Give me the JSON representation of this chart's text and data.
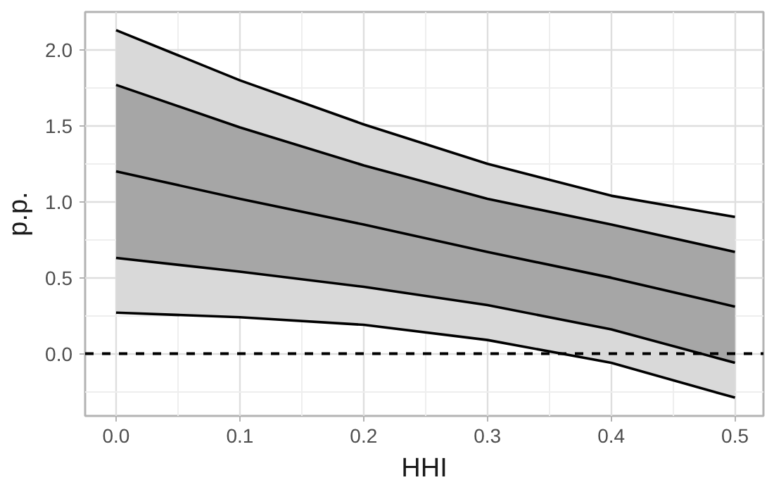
{
  "chart_data": {
    "type": "line",
    "xlabel": "HHI",
    "ylabel": "p.p.",
    "x": [
      0,
      0.1,
      0.2,
      0.3,
      0.4,
      0.5
    ],
    "series": [
      {
        "color": "#000000",
        "values": [
          2.13,
          1.8,
          1.51,
          1.25,
          1.04,
          0.9
        ],
        "lower": [
          0.27,
          0.24,
          0.19,
          0.09,
          -0.06,
          -0.29
        ],
        "upper": [
          2.13,
          1.8,
          1.51,
          1.25,
          1.04,
          0.9
        ]
      },
      {
        "color": "#000000",
        "values": [
          1.2,
          1.02,
          0.85,
          0.67,
          0.5,
          0.31
        ],
        "lower": [
          0.63,
          0.54,
          0.44,
          0.32,
          0.16,
          -0.06
        ],
        "upper": [
          1.77,
          1.49,
          1.24,
          1.02,
          0.85,
          0.67
        ]
      },
      {
        "color": "#000000",
        "values": [
          1.77,
          1.49,
          1.24,
          1.02,
          0.85,
          0.67
        ]
      },
      {
        "color": "#000000",
        "values": [
          0.63,
          0.54,
          0.44,
          0.32,
          0.16,
          -0.06
        ]
      },
      {
        "color": "#000000",
        "values": [
          0.27,
          0.24,
          0.19,
          0.09,
          -0.06,
          -0.29
        ]
      }
    ],
    "xlim": [
      -0.025,
      0.523
    ],
    "ylim": [
      -0.41,
      2.25
    ],
    "xticks": [
      {
        "value": 0,
        "label": "0.0"
      },
      {
        "value": 0.1,
        "label": "0.1"
      },
      {
        "value": 0.2,
        "label": "0.2"
      },
      {
        "value": 0.3,
        "label": "0.3"
      },
      {
        "value": 0.4,
        "label": "0.4"
      },
      {
        "value": 0.5,
        "label": "0.5"
      }
    ],
    "yticks": [
      {
        "value": 0,
        "label": "0.0"
      },
      {
        "value": 0.5,
        "label": "0.5"
      },
      {
        "value": 1,
        "label": "1.0"
      },
      {
        "value": 1.5,
        "label": "1.5"
      },
      {
        "value": 2,
        "label": "2.0"
      }
    ],
    "ref_lines": [
      {
        "axis": "y",
        "value": 0,
        "line_style": "dashed",
        "color": "#000000"
      }
    ],
    "grid": true,
    "marker": "none",
    "line_style": "solid"
  }
}
